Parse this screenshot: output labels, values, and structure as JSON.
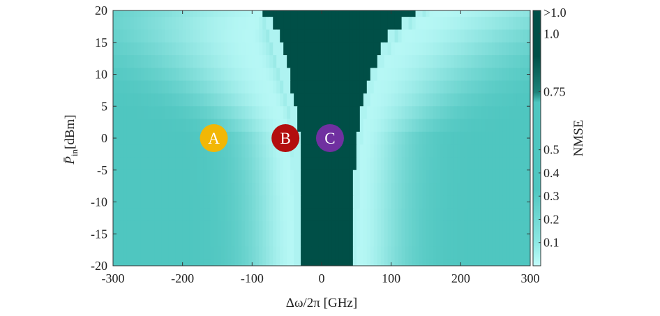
{
  "chart_data": {
    "type": "heatmap",
    "xlabel": "Δω/2π [GHz]",
    "ylabel_main": "P̄",
    "ylabel_sub": "in",
    "ylabel_unit": "[dBm]",
    "xlim": [
      -300,
      300
    ],
    "ylim": [
      -20,
      20
    ],
    "x_ticks": [
      -300,
      -200,
      -100,
      0,
      100,
      200,
      300
    ],
    "y_ticks": [
      -20,
      -15,
      -10,
      -5,
      0,
      5,
      10,
      15,
      20
    ],
    "colorbar": {
      "label": "NMSE",
      "tick_labels": [
        "0.1",
        "0.2",
        "0.3",
        "0.4",
        "0.5",
        "0.75",
        "1.0",
        ">1.0"
      ],
      "tick_values": [
        0.1,
        0.2,
        0.3,
        0.4,
        0.5,
        0.75,
        1.0,
        1.1
      ],
      "range": [
        0,
        1.1
      ],
      "colors": {
        "low": "#c2fdfb",
        "mid": "#4fc6c0",
        "high": "#004f47"
      }
    },
    "grid": false,
    "markers": [
      {
        "label": "A",
        "x": -155,
        "y": 0,
        "color": "#f2b705"
      },
      {
        "label": "B",
        "x": -52,
        "y": 0,
        "color": "#b30e0e"
      },
      {
        "label": "C",
        "x": 12,
        "y": 0,
        "color": "#7030a0"
      }
    ],
    "region_boundaries": {
      "p_levels": [
        20,
        18,
        16,
        14,
        12,
        10,
        8,
        6,
        4,
        2,
        0,
        -2,
        -4,
        -6,
        -8,
        -10,
        -12,
        -14,
        -16,
        -18,
        -20
      ],
      "high_error_left_edge_ghz": [
        -85,
        -70,
        -62,
        -57,
        -52,
        -47,
        -43,
        -38,
        -35,
        -33,
        -31,
        -30,
        -29,
        -29,
        -29,
        -29,
        -29,
        -29,
        -29,
        -29,
        -29
      ],
      "high_error_right_edge_ghz": [
        135,
        115,
        97,
        85,
        78,
        72,
        66,
        62,
        57,
        55,
        52,
        50,
        48,
        47,
        46,
        45,
        45,
        44,
        44,
        43,
        43
      ],
      "valley_left_center_ghz": [
        -75,
        -95,
        -100,
        -95,
        -90,
        -82,
        -75,
        -68,
        -60,
        -55,
        -52,
        -50,
        -48,
        -46,
        -45,
        -44,
        -44,
        -43,
        -43,
        -42,
        -42
      ],
      "valley_right_center_ghz": [
        160,
        140,
        120,
        105,
        92,
        82,
        75,
        70,
        65,
        62,
        60,
        58,
        57,
        56,
        55,
        55,
        54,
        54,
        54,
        53,
        53
      ],
      "background_nmse": 0.4,
      "valley_min_nmse": 0.02
    }
  }
}
